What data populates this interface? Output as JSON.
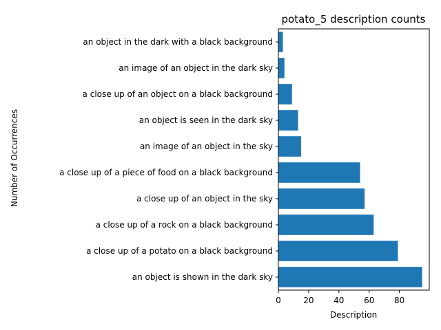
{
  "chart_data": {
    "type": "bar",
    "orientation": "horizontal",
    "title": "potato_5 description counts",
    "xlabel": "Description",
    "ylabel": "Number of Occurrences",
    "categories": [
      "an object is shown in the dark sky",
      "a close up of a potato on a black background",
      "a close up of a rock on a black background",
      "a close up of an object in the sky",
      "a close up of a piece of food on a black background",
      "an image of an object in the sky",
      "an object is seen in the dark sky",
      "a close up of an object on a black background",
      "an image of an object in the dark sky",
      "an object in the dark with a black background"
    ],
    "values": [
      95,
      79,
      63,
      57,
      54,
      15,
      13,
      9,
      4,
      3
    ],
    "xlim": [
      0,
      99.75
    ],
    "xticks": [
      0,
      20,
      40,
      60,
      80
    ],
    "bar_color": "#1f77b4",
    "grid": false,
    "legend": "none"
  }
}
